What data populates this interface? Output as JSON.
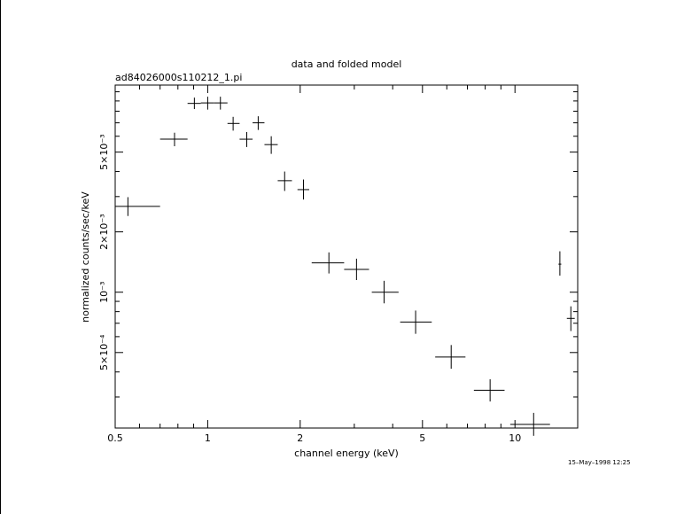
{
  "chart_data": {
    "type": "scatter",
    "title": "data and folded model",
    "subtitle": "ad84026000s110212_1.pi",
    "xlabel": "channel energy (keV)",
    "ylabel": "normalized counts/sec/keV",
    "xscale": "log",
    "yscale": "log",
    "xlim": [
      0.5,
      16
    ],
    "ylim": [
      0.00021,
      0.0108
    ],
    "x_ticks": [
      {
        "value": 0.5,
        "label": "0.5"
      },
      {
        "value": 1,
        "label": "1"
      },
      {
        "value": 2,
        "label": "2"
      },
      {
        "value": 5,
        "label": "5"
      },
      {
        "value": 10,
        "label": "10"
      }
    ],
    "y_ticks": [
      {
        "value": 0.0005,
        "label": "5×10⁻⁴"
      },
      {
        "value": 0.001,
        "label": "10⁻³"
      },
      {
        "value": 0.002,
        "label": "2×10⁻³"
      },
      {
        "value": 0.005,
        "label": "5×10⁻³"
      }
    ],
    "points": [
      {
        "x": 0.55,
        "xlo": 0.5,
        "xhi": 0.7,
        "y": 0.00268,
        "ylo": 0.0024,
        "yhi": 0.00298
      },
      {
        "x": 0.78,
        "xlo": 0.7,
        "xhi": 0.86,
        "y": 0.0058,
        "ylo": 0.00535,
        "yhi": 0.00625
      },
      {
        "x": 0.905,
        "xlo": 0.86,
        "xhi": 0.95,
        "y": 0.00875,
        "ylo": 0.0082,
        "yhi": 0.00935
      },
      {
        "x": 1.0,
        "xlo": 0.95,
        "xhi": 1.05,
        "y": 0.0088,
        "ylo": 0.00815,
        "yhi": 0.00945
      },
      {
        "x": 1.1,
        "xlo": 1.05,
        "xhi": 1.16,
        "y": 0.0088,
        "ylo": 0.00815,
        "yhi": 0.00945
      },
      {
        "x": 1.21,
        "xlo": 1.16,
        "xhi": 1.27,
        "y": 0.00695,
        "ylo": 0.0064,
        "yhi": 0.0075
      },
      {
        "x": 1.34,
        "xlo": 1.27,
        "xhi": 1.4,
        "y": 0.0058,
        "ylo": 0.0053,
        "yhi": 0.0063
      },
      {
        "x": 1.46,
        "xlo": 1.4,
        "xhi": 1.53,
        "y": 0.007,
        "ylo": 0.00645,
        "yhi": 0.00755
      },
      {
        "x": 1.61,
        "xlo": 1.53,
        "xhi": 1.69,
        "y": 0.00545,
        "ylo": 0.0049,
        "yhi": 0.006
      },
      {
        "x": 1.78,
        "xlo": 1.69,
        "xhi": 1.88,
        "y": 0.0036,
        "ylo": 0.0032,
        "yhi": 0.004
      },
      {
        "x": 2.05,
        "xlo": 1.96,
        "xhi": 2.14,
        "y": 0.00325,
        "ylo": 0.0029,
        "yhi": 0.00365
      },
      {
        "x": 2.48,
        "xlo": 2.18,
        "xhi": 2.78,
        "y": 0.0014,
        "ylo": 0.00124,
        "yhi": 0.00158
      },
      {
        "x": 3.05,
        "xlo": 2.78,
        "xhi": 3.35,
        "y": 0.0013,
        "ylo": 0.00115,
        "yhi": 0.00147
      },
      {
        "x": 3.75,
        "xlo": 3.42,
        "xhi": 4.18,
        "y": 0.001,
        "ylo": 0.00088,
        "yhi": 0.00114
      },
      {
        "x": 4.75,
        "xlo": 4.23,
        "xhi": 5.36,
        "y": 0.00071,
        "ylo": 0.00062,
        "yhi": 0.00081
      },
      {
        "x": 6.2,
        "xlo": 5.5,
        "xhi": 6.9,
        "y": 0.000475,
        "ylo": 0.000415,
        "yhi": 0.000545
      },
      {
        "x": 8.3,
        "xlo": 7.35,
        "xhi": 9.25,
        "y": 0.000324,
        "ylo": 0.000285,
        "yhi": 0.000368
      },
      {
        "x": 11.5,
        "xlo": 9.65,
        "xhi": 13.0,
        "y": 0.000219,
        "ylo": 0.000192,
        "yhi": 0.00025
      },
      {
        "x": 14.0,
        "xlo": 13.85,
        "xhi": 14.15,
        "y": 0.00138,
        "ylo": 0.00121,
        "yhi": 0.0016
      },
      {
        "x": 15.2,
        "xlo": 14.75,
        "xhi": 15.65,
        "y": 0.00074,
        "ylo": 0.00064,
        "yhi": 0.00085
      }
    ]
  },
  "timestamp": "15–May–1998 12:25"
}
